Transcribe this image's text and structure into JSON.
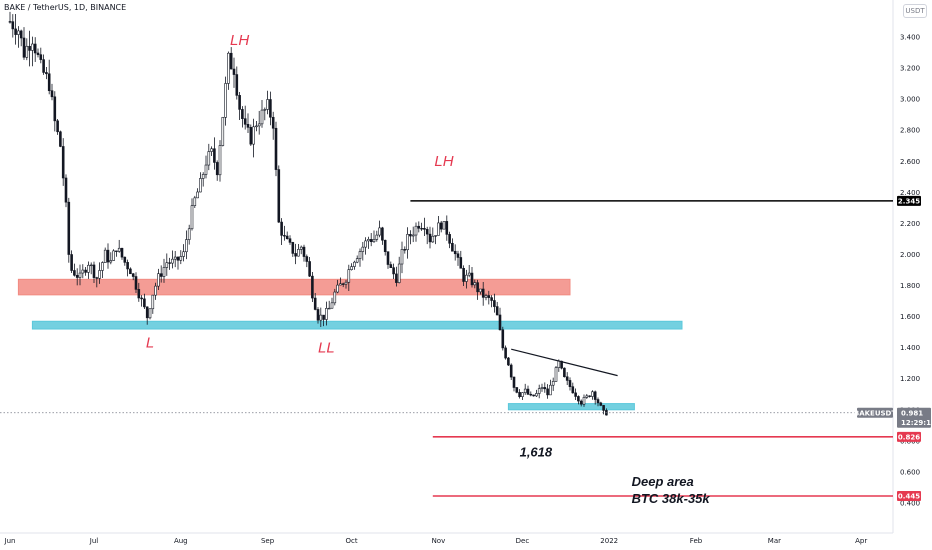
{
  "header": {
    "symbol": "BAKE / TetherUS, 1D, BINANCE"
  },
  "axis": {
    "unit": "USDT"
  },
  "chart_data": {
    "type": "candlestick",
    "title": "BAKE / TetherUS, 1D, BINANCE",
    "ylim": [
      0.4,
      3.5
    ],
    "yticks": [
      "3.400",
      "3.200",
      "3.000",
      "2.800",
      "2.600",
      "2.400",
      "2.200",
      "2.000",
      "1.800",
      "1.600",
      "1.400",
      "1.200",
      "1.000",
      "0.800",
      "0.600",
      "0.400"
    ],
    "ytick_values": [
      3.4,
      3.2,
      3.0,
      2.8,
      2.6,
      2.4,
      2.2,
      2.0,
      1.8,
      1.6,
      1.4,
      1.2,
      1.0,
      0.8,
      0.6,
      0.4
    ],
    "xticks": [
      "Jun",
      "Jul",
      "Aug",
      "Sep",
      "Oct",
      "Nov",
      "Dec",
      "2022",
      "Feb",
      "Mar",
      "Apr"
    ],
    "xtick_days": [
      0,
      30,
      61,
      92,
      122,
      153,
      183,
      214,
      245,
      273,
      304
    ],
    "x_start": "2021-06-01",
    "price_path": [
      [
        0,
        3.5
      ],
      [
        3,
        3.45
      ],
      [
        5,
        3.3
      ],
      [
        8,
        3.4
      ],
      [
        11,
        3.2
      ],
      [
        14,
        3.1
      ],
      [
        16,
        2.85
      ],
      [
        18,
        2.7
      ],
      [
        20,
        2.3
      ],
      [
        21,
        2.0
      ],
      [
        22,
        1.9
      ],
      [
        25,
        1.85
      ],
      [
        28,
        1.95
      ],
      [
        31,
        1.85
      ],
      [
        34,
        2.0
      ],
      [
        36,
        1.95
      ],
      [
        38,
        2.05
      ],
      [
        41,
        1.95
      ],
      [
        43,
        1.9
      ],
      [
        45,
        1.8
      ],
      [
        47,
        1.7
      ],
      [
        49,
        1.6
      ],
      [
        51,
        1.75
      ],
      [
        53,
        1.85
      ],
      [
        56,
        1.95
      ],
      [
        59,
        1.95
      ],
      [
        62,
        2.0
      ],
      [
        64,
        2.2
      ],
      [
        66,
        2.35
      ],
      [
        68,
        2.45
      ],
      [
        70,
        2.6
      ],
      [
        72,
        2.65
      ],
      [
        74,
        2.55
      ],
      [
        76,
        2.9
      ],
      [
        78,
        3.25
      ],
      [
        80,
        3.2
      ],
      [
        82,
        2.95
      ],
      [
        84,
        2.8
      ],
      [
        86,
        2.75
      ],
      [
        88,
        2.85
      ],
      [
        90,
        2.9
      ],
      [
        92,
        2.95
      ],
      [
        94,
        2.85
      ],
      [
        96,
        2.2
      ],
      [
        98,
        2.1
      ],
      [
        100,
        2.05
      ],
      [
        102,
        2.0
      ],
      [
        104,
        2.05
      ],
      [
        106,
        1.95
      ],
      [
        108,
        1.75
      ],
      [
        110,
        1.6
      ],
      [
        112,
        1.6
      ],
      [
        114,
        1.65
      ],
      [
        116,
        1.75
      ],
      [
        118,
        1.8
      ],
      [
        120,
        1.85
      ],
      [
        122,
        1.95
      ],
      [
        124,
        2.0
      ],
      [
        126,
        2.05
      ],
      [
        128,
        2.1
      ],
      [
        130,
        2.1
      ],
      [
        132,
        2.15
      ],
      [
        134,
        2.0
      ],
      [
        136,
        1.9
      ],
      [
        138,
        1.85
      ],
      [
        140,
        2.0
      ],
      [
        142,
        2.1
      ],
      [
        144,
        2.15
      ],
      [
        146,
        2.2
      ],
      [
        148,
        2.2
      ],
      [
        150,
        2.1
      ],
      [
        152,
        2.15
      ],
      [
        154,
        2.2
      ],
      [
        156,
        2.15
      ],
      [
        158,
        2.05
      ],
      [
        160,
        1.95
      ],
      [
        162,
        1.85
      ],
      [
        164,
        1.85
      ],
      [
        166,
        1.8
      ],
      [
        168,
        1.75
      ],
      [
        170,
        1.72
      ],
      [
        172,
        1.7
      ],
      [
        174,
        1.6
      ],
      [
        176,
        1.4
      ],
      [
        178,
        1.3
      ],
      [
        180,
        1.15
      ],
      [
        182,
        1.1
      ],
      [
        184,
        1.12
      ],
      [
        186,
        1.08
      ],
      [
        188,
        1.1
      ],
      [
        190,
        1.15
      ],
      [
        192,
        1.1
      ],
      [
        194,
        1.2
      ],
      [
        196,
        1.3
      ],
      [
        198,
        1.2
      ],
      [
        200,
        1.15
      ],
      [
        202,
        1.1
      ],
      [
        204,
        1.05
      ],
      [
        206,
        1.08
      ],
      [
        208,
        1.12
      ],
      [
        210,
        1.05
      ],
      [
        212,
        0.98
      ],
      [
        213,
        0.981
      ]
    ],
    "zones": [
      {
        "name": "resistance-zone",
        "low": 1.74,
        "high": 1.84,
        "from_day": 3,
        "to_day": 200,
        "color": "#f28b82"
      },
      {
        "name": "support-zone",
        "low": 1.52,
        "high": 1.57,
        "from_day": 8,
        "to_day": 240,
        "color": "#5bc8db"
      },
      {
        "name": "base-zone",
        "low": 1.0,
        "high": 1.04,
        "from_day": 178,
        "to_day": 223,
        "color": "#5bc8db"
      }
    ],
    "trendline": {
      "from_day": 179,
      "from_price": 1.39,
      "to_day": 217,
      "to_price": 1.22
    },
    "levels": [
      {
        "name": "high-level",
        "price": 2.345,
        "label": "2.345",
        "color": "#000000",
        "from_day": 143
      },
      {
        "name": "fib-1618",
        "price": 0.826,
        "label": "0.826",
        "color": "#e53950",
        "from_day": 151
      },
      {
        "name": "deep-area",
        "price": 0.445,
        "label": "0.445",
        "color": "#e53950",
        "from_day": 151
      }
    ],
    "last_price": {
      "price": 0.981,
      "symbol": "BAKEUSDT",
      "price_label": "0.981",
      "countdown": "12:29:16"
    },
    "annotations": [
      {
        "name": "lh-1",
        "text": "LH",
        "day": 82,
        "price": 3.35,
        "style": "red"
      },
      {
        "name": "lh-2",
        "text": "LH",
        "day": 155,
        "price": 2.57,
        "style": "red"
      },
      {
        "name": "l-1",
        "text": "L",
        "day": 50,
        "price": 1.4,
        "style": "red"
      },
      {
        "name": "ll-1",
        "text": "LL",
        "day": 113,
        "price": 1.37,
        "style": "red"
      },
      {
        "name": "fib-label",
        "text": "1,618",
        "day": 182,
        "price": 0.7,
        "style": "black"
      },
      {
        "name": "deep-area-1",
        "text": "Deep area",
        "day": 222,
        "price": 0.51,
        "style": "black"
      },
      {
        "name": "deep-area-2",
        "text": "BTC 38k-35k",
        "day": 222,
        "price": 0.4,
        "style": "black"
      }
    ]
  }
}
